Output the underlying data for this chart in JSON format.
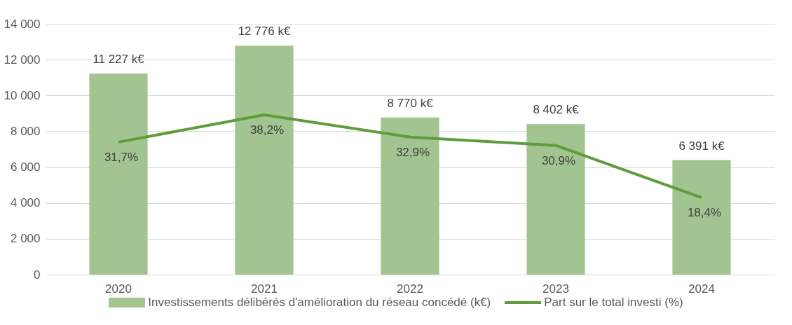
{
  "chart_data": {
    "type": "bar",
    "categories": [
      "2020",
      "2021",
      "2022",
      "2023",
      "2024"
    ],
    "ylim": [
      0,
      14000
    ],
    "yticks": [
      0,
      {
        "value": 2000,
        "label": "2 000"
      },
      {
        "value": 4000,
        "label": "4 000"
      },
      {
        "value": 6000,
        "label": "6 000"
      },
      {
        "value": 8000,
        "label": "8 000"
      },
      {
        "value": 10000,
        "label": "10 000"
      },
      {
        "value": 12000,
        "label": "12 000"
      },
      {
        "value": 14000,
        "label": "14 000"
      }
    ],
    "y2lim": [
      0,
      60
    ],
    "grid": "y",
    "legend": "bottom",
    "series": [
      {
        "name": "Investissements délibérés d'amélioration du réseau concédé (k€)",
        "color": "#a2c490",
        "values": [
          11227,
          12776,
          8770,
          8402,
          6391
        ],
        "value_labels": [
          "11 227 k€",
          "12 776 k€",
          "8 770 k€",
          "8 402 k€",
          "6 391 k€"
        ]
      },
      {
        "name": "Part sur le total investi (%)",
        "type": "line",
        "axis": "y2",
        "color": "#5e9c3c",
        "values": [
          31.7,
          38.2,
          32.9,
          30.9,
          18.4
        ],
        "value_labels": [
          "31,7%",
          "38,2%",
          "32,9%",
          "30,9%",
          "18,4%"
        ]
      }
    ]
  }
}
